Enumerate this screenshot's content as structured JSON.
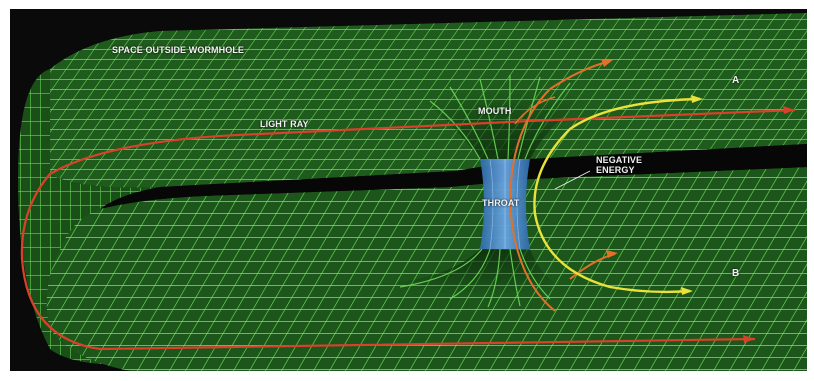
{
  "labels": {
    "space_outside": "SPACE OUTSIDE WORMHOLE",
    "light_ray": "LIGHT RAY",
    "mouth": "MOUTH",
    "negative_energy_line1": "NEGATIVE",
    "negative_energy_line2": "ENERGY",
    "throat": "THROAT",
    "point_a": "A",
    "point_b": "B"
  },
  "colors": {
    "grid": "#6fe05a",
    "surface": "#1e5a1e",
    "light_ray": "#d8412a",
    "light_ray_branch": "#e0702a",
    "negative_energy": "#e8e23a",
    "throat": "#4a86c8",
    "background": "#0a0a0a"
  }
}
